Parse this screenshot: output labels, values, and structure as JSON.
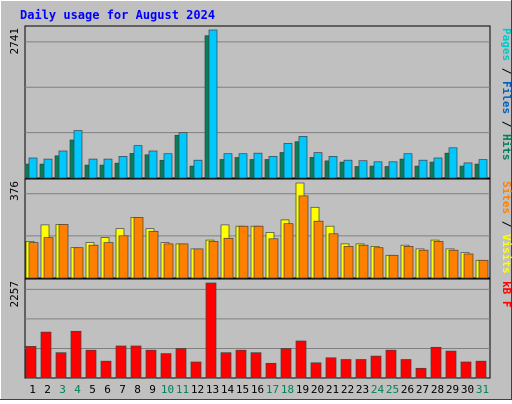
{
  "chart_data": [
    {
      "type": "bar",
      "title": "Daily usage for August 2024",
      "panel": "top",
      "y_tick_label": "2741",
      "ylabel_parts": [
        "Pages",
        "/",
        "Files",
        "/",
        "Hits"
      ],
      "ylim": [
        0,
        2741
      ],
      "categories": [
        "1",
        "2",
        "3",
        "4",
        "5",
        "6",
        "7",
        "8",
        "9",
        "10",
        "11",
        "12",
        "13",
        "14",
        "15",
        "16",
        "17",
        "18",
        "19",
        "20",
        "21",
        "22",
        "23",
        "24",
        "25",
        "26",
        "27",
        "28",
        "29",
        "30",
        "31"
      ],
      "series": [
        {
          "name": "Pages",
          "values": [
            0,
            0,
            0,
            0,
            0,
            0,
            0,
            0,
            0,
            0,
            0,
            0,
            0,
            0,
            0,
            0,
            0,
            0,
            0,
            0,
            0,
            0,
            0,
            0,
            0,
            0,
            0,
            0,
            0,
            0,
            0
          ]
        },
        {
          "name": "Files",
          "values": [
            258,
            258,
            412,
            704,
            239,
            239,
            275,
            455,
            430,
            328,
            790,
            221,
            2635,
            343,
            380,
            343,
            343,
            472,
            673,
            382,
            317,
            294,
            213,
            221,
            213,
            350,
            221,
            294,
            460,
            221,
            258
          ]
        },
        {
          "name": "Hits",
          "values": [
            370,
            350,
            500,
            880,
            350,
            350,
            400,
            600,
            500,
            450,
            840,
            330,
            2741,
            450,
            450,
            460,
            400,
            640,
            770,
            470,
            400,
            330,
            320,
            300,
            300,
            450,
            330,
            370,
            560,
            280,
            340
          ]
        }
      ]
    },
    {
      "type": "bar",
      "panel": "middle",
      "y_tick_label": "376",
      "ylabel_parts": [
        "Sites",
        "/",
        "Visits"
      ],
      "ylim": [
        0,
        376
      ],
      "categories": [
        "1",
        "2",
        "3",
        "4",
        "5",
        "6",
        "7",
        "8",
        "9",
        "10",
        "11",
        "12",
        "13",
        "14",
        "15",
        "16",
        "17",
        "18",
        "19",
        "20",
        "21",
        "22",
        "23",
        "24",
        "25",
        "26",
        "27",
        "28",
        "29",
        "30",
        "31"
      ],
      "series": [
        {
          "name": "Sites",
          "values": [
            140,
            160,
            212,
            120,
            130,
            140,
            167,
            240,
            185,
            135,
            135,
            115,
            145,
            157,
            205,
            205,
            155,
            215,
            325,
            225,
            175,
            125,
            130,
            120,
            90,
            125,
            110,
            145,
            110,
            95,
            70
          ]
        },
        {
          "name": "Visits",
          "values": [
            145,
            210,
            212,
            120,
            140,
            160,
            195,
            240,
            195,
            140,
            135,
            115,
            150,
            210,
            205,
            205,
            180,
            230,
            376,
            280,
            205,
            135,
            135,
            125,
            90,
            130,
            115,
            150,
            115,
            100,
            70
          ]
        }
      ]
    },
    {
      "type": "bar",
      "panel": "bottom",
      "y_tick_label": "2257",
      "ylabel_parts": [
        "kB",
        "F"
      ],
      "ylim": [
        0,
        2257
      ],
      "categories": [
        "1",
        "2",
        "3",
        "4",
        "5",
        "6",
        "7",
        "8",
        "9",
        "10",
        "11",
        "12",
        "13",
        "14",
        "15",
        "16",
        "17",
        "18",
        "19",
        "20",
        "21",
        "22",
        "23",
        "24",
        "25",
        "26",
        "27",
        "28",
        "29",
        "30",
        "31"
      ],
      "series": [
        {
          "name": "kB F",
          "values": [
            750,
            1090,
            600,
            1110,
            660,
            400,
            760,
            760,
            660,
            580,
            700,
            380,
            2257,
            600,
            660,
            600,
            350,
            700,
            880,
            360,
            480,
            440,
            440,
            520,
            660,
            440,
            230,
            730,
            640,
            380,
            400
          ]
        }
      ]
    }
  ],
  "x_labels": [
    "1",
    "2",
    "3",
    "4",
    "5",
    "6",
    "7",
    "8",
    "9",
    "10",
    "11",
    "12",
    "13",
    "14",
    "15",
    "16",
    "17",
    "18",
    "19",
    "20",
    "21",
    "22",
    "23",
    "24",
    "25",
    "26",
    "27",
    "28",
    "29",
    "30",
    "31"
  ],
  "weekend_days": [
    3,
    4,
    10,
    11,
    17,
    18,
    24,
    25,
    31
  ],
  "colors": {
    "background": "#c0c0c0",
    "title": "#0000ff",
    "text": "#000000",
    "weekend": "#00805c",
    "grid": "#808080",
    "pages": "#00c8c8",
    "files": "#00805c",
    "hits": "#00c8ff",
    "sites": "#ff8000",
    "visits": "#ffff00",
    "kbytes": "#ff0000",
    "label_files": "#0060c0",
    "label_hits": "#00805c",
    "label_sites": "#ff8000",
    "label_visits": "#ffff00",
    "label_kbytes": "#ff0000"
  }
}
